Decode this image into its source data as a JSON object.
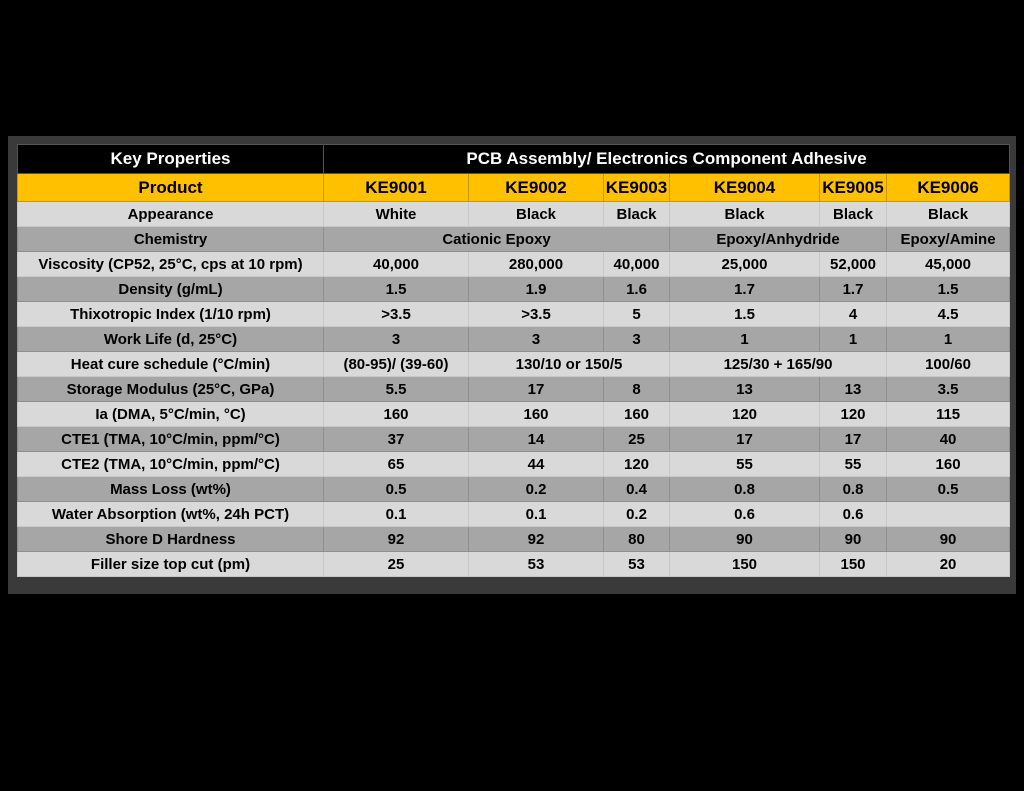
{
  "header": {
    "key_properties": "Key Properties",
    "category": "PCB Assembly/ Electronics Component Adhesive"
  },
  "product_row": {
    "label": "Product",
    "products": [
      "KE9001",
      "KE9002",
      "KE9003",
      "KE9004",
      "KE9005",
      "KE9006"
    ]
  },
  "colors": {
    "header_bg": "#000000",
    "product_bg": "#FFC000",
    "row_light": "#D9D9D9",
    "row_dark": "#A6A6A6"
  },
  "rows": [
    {
      "label": "Appearance",
      "values": [
        "White",
        "Black",
        "Black",
        "Black",
        "Black",
        "Black"
      ]
    },
    {
      "label": "Chemistry",
      "values": [
        "Cationic Epoxy",
        "Epoxy/Anhydride",
        "Epoxy/Amine"
      ]
    },
    {
      "label": "Viscosity (CP52, 25°C, cps at 10 rpm)",
      "values": [
        "40,000",
        "280,000",
        "40,000",
        "25,000",
        "52,000",
        "45,000"
      ]
    },
    {
      "label": "Density (g/mL)",
      "values": [
        "1.5",
        "1.9",
        "1.6",
        "1.7",
        "1.7",
        "1.5"
      ]
    },
    {
      "label": "Thixotropic Index (1/10 rpm)",
      "values": [
        ">3.5",
        ">3.5",
        "5",
        "1.5",
        "4",
        "4.5"
      ]
    },
    {
      "label": "Work Life (d, 25°C)",
      "values": [
        "3",
        "3",
        "3",
        "1",
        "1",
        "1"
      ]
    },
    {
      "label": "Heat cure schedule (°C/min)",
      "values": [
        "(80-95)/ (39-60)",
        "130/10 or 150/5",
        "125/30 + 165/90",
        "100/60"
      ]
    },
    {
      "label": "Storage Modulus (25°C, GPa)",
      "values": [
        "5.5",
        "17",
        "8",
        "13",
        "13",
        "3.5"
      ]
    },
    {
      "label": "Ia (DMA, 5°C/min, °C)",
      "values": [
        "160",
        "160",
        "160",
        "120",
        "120",
        "115"
      ]
    },
    {
      "label": "CTE1 (TMA, 10°C/min, ppm/°C)",
      "values": [
        "37",
        "14",
        "25",
        "17",
        "17",
        "40"
      ]
    },
    {
      "label": "CTE2 (TMA, 10°C/min, ppm/°C)",
      "values": [
        "65",
        "44",
        "120",
        "55",
        "55",
        "160"
      ]
    },
    {
      "label": "Mass Loss (wt%)",
      "values": [
        "0.5",
        "0.2",
        "0.4",
        "0.8",
        "0.8",
        "0.5"
      ]
    },
    {
      "label": "Water Absorption (wt%, 24h PCT)",
      "values": [
        "0.1",
        "0.1",
        "0.2",
        "0.6",
        "0.6",
        ""
      ]
    },
    {
      "label": "Shore D Hardness",
      "values": [
        "92",
        "92",
        "80",
        "90",
        "90",
        "90"
      ]
    },
    {
      "label": "Filler size top cut (pm)",
      "values": [
        "25",
        "53",
        "53",
        "150",
        "150",
        "20"
      ]
    }
  ]
}
